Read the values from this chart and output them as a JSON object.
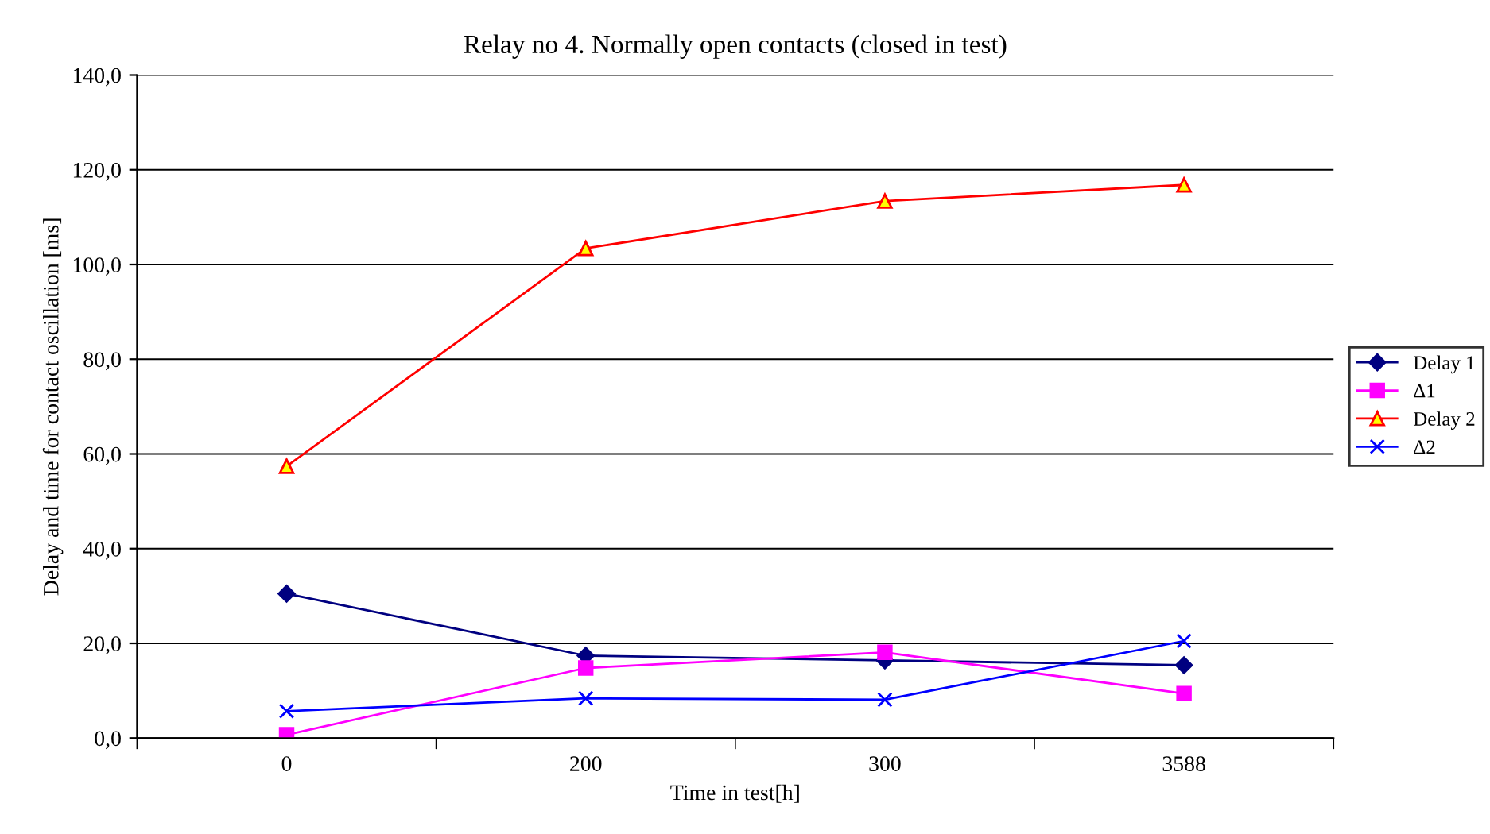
{
  "chart_data": {
    "type": "line",
    "title": "Relay no 4. Normally open contacts (closed in test)",
    "xlabel": "Time in test[h]",
    "ylabel": "Delay and time for contact oscillation [ms]",
    "categories": [
      "0",
      "200",
      "300",
      "3588"
    ],
    "series": [
      {
        "name": "Delay 1",
        "color": "#000080",
        "marker": "diamond",
        "values": [
          30.5,
          17.4,
          16.4,
          15.4
        ]
      },
      {
        "name": "Δ1",
        "color": "#ff00ff",
        "marker": "square",
        "values": [
          0.7,
          14.8,
          18.1,
          9.4
        ]
      },
      {
        "name": "Delay 2",
        "color": "#ff0000",
        "marker": "triangle",
        "values": [
          57.4,
          103.4,
          113.4,
          116.8
        ]
      },
      {
        "name": "Δ2",
        "color": "#0000ff",
        "marker": "cross",
        "values": [
          5.7,
          8.4,
          8.1,
          20.5
        ]
      }
    ],
    "ylim": [
      0,
      140
    ],
    "yticks": [
      {
        "value": 0,
        "label": "0,0"
      },
      {
        "value": 20,
        "label": "20,0"
      },
      {
        "value": 40,
        "label": "40,0"
      },
      {
        "value": 60,
        "label": "60,0"
      },
      {
        "value": 80,
        "label": "80,0"
      },
      {
        "value": 100,
        "label": "100,0"
      },
      {
        "value": 120,
        "label": "120,0"
      },
      {
        "value": 140,
        "label": "140,0"
      }
    ],
    "grid": "y",
    "legend": "right",
    "line_style": "solid"
  }
}
